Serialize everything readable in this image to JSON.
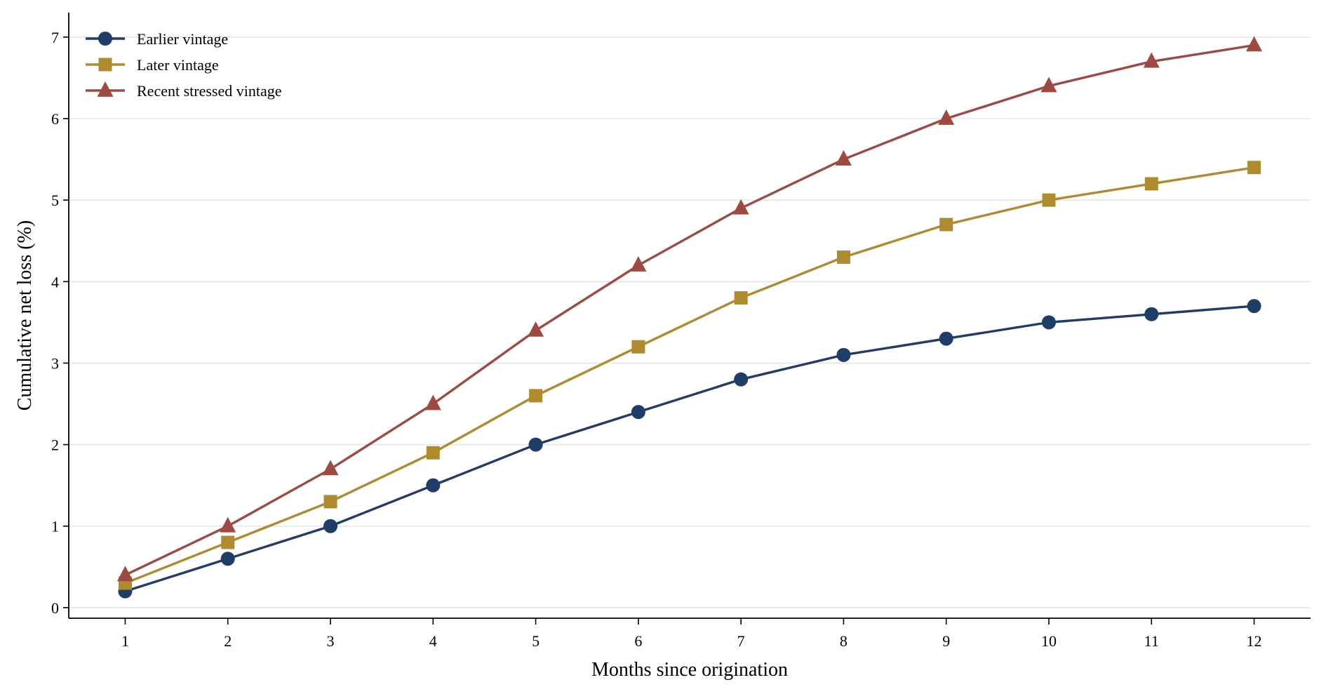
{
  "chart_data": {
    "type": "line",
    "title": "",
    "xlabel": "Months since origination",
    "ylabel": "Cumulative net loss (%)",
    "x": [
      1,
      2,
      3,
      4,
      5,
      6,
      7,
      8,
      9,
      10,
      11,
      12
    ],
    "xticks": [
      "1",
      "2",
      "3",
      "4",
      "5",
      "6",
      "7",
      "8",
      "9",
      "10",
      "11",
      "12"
    ],
    "yticks": [
      "0",
      "1",
      "2",
      "3",
      "4",
      "5",
      "6",
      "7"
    ],
    "xlim": [
      0.45,
      12.55
    ],
    "ylim": [
      -0.13,
      7.3
    ],
    "grid": "horizontal",
    "legend_position": "top-left",
    "series": [
      {
        "name": "Earlier vintage",
        "color": "#1f3d66",
        "marker": "circle",
        "values": [
          0.2,
          0.6,
          1.0,
          1.5,
          2.0,
          2.4,
          2.8,
          3.1,
          3.3,
          3.5,
          3.6,
          3.7
        ]
      },
      {
        "name": "Later vintage",
        "color": "#b08a2e",
        "marker": "square",
        "values": [
          0.3,
          0.8,
          1.3,
          1.9,
          2.6,
          3.2,
          3.8,
          4.3,
          4.7,
          5.0,
          5.2,
          5.4
        ]
      },
      {
        "name": "Recent stressed vintage",
        "color": "#9e4a42",
        "marker": "triangle",
        "values": [
          0.4,
          1.0,
          1.7,
          2.5,
          3.4,
          4.2,
          4.9,
          5.5,
          6.0,
          6.4,
          6.7,
          6.9
        ]
      }
    ]
  }
}
